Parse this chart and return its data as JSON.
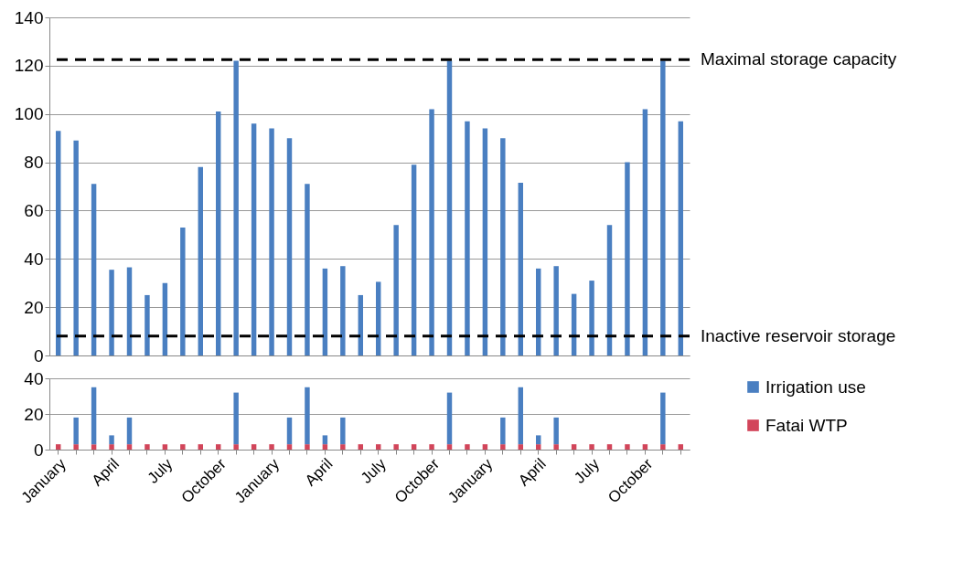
{
  "chart_data": [
    {
      "type": "bar",
      "categories": [
        null,
        null,
        null,
        null,
        null,
        null,
        null,
        null,
        null,
        null,
        null,
        null,
        null,
        null,
        null,
        null,
        null,
        null,
        null,
        null,
        null,
        null,
        null,
        null,
        null,
        null,
        null,
        null,
        null,
        null,
        null,
        null,
        null,
        null,
        null,
        null
      ],
      "values": [
        93,
        89,
        71,
        35.5,
        36.5,
        25,
        30,
        53,
        78,
        101,
        122,
        96,
        94,
        90,
        71,
        36,
        37,
        25,
        30.5,
        54,
        79,
        102,
        122,
        97,
        94,
        90,
        71.5,
        36,
        37,
        25.5,
        31,
        54,
        80,
        102,
        122,
        97
      ],
      "color": "#4a7fc1",
      "ylim": [
        0,
        140
      ],
      "yticks": [
        0,
        20,
        40,
        60,
        80,
        100,
        120,
        140
      ],
      "grid": "y",
      "tick_labels": "y",
      "ref_lines": [
        {
          "axis": "y",
          "value": 122.5,
          "label": "Maximal storage capacity",
          "color": "#000000",
          "line_style": "dashed"
        },
        {
          "axis": "y",
          "value": 8,
          "label": "Inactive reservoir storage",
          "color": "#000000",
          "line_style": "dashed"
        }
      ]
    },
    {
      "type": "bar",
      "stacked": true,
      "categories": [
        "January",
        null,
        null,
        "April",
        null,
        null,
        "July",
        null,
        null,
        "October",
        null,
        null,
        "January",
        null,
        null,
        "April",
        null,
        null,
        "July",
        null,
        null,
        "October",
        null,
        null,
        "January",
        null,
        null,
        "April",
        null,
        null,
        "July",
        null,
        null,
        "October",
        null,
        null
      ],
      "series": [
        {
          "name": "Fatai WTP",
          "color": "#d2455a",
          "values": [
            3,
            3,
            3,
            3,
            3,
            3,
            3,
            3,
            3,
            3,
            3,
            3,
            3,
            3,
            3,
            3,
            3,
            3,
            3,
            3,
            3,
            3,
            3,
            3,
            3,
            3,
            3,
            3,
            3,
            3,
            3,
            3,
            3,
            3,
            3,
            3
          ]
        },
        {
          "name": "Irrigation use",
          "color": "#4a7fc1",
          "values": [
            0,
            15,
            32,
            5,
            15,
            0,
            0,
            0,
            0,
            0,
            29,
            0,
            0,
            15,
            32,
            5,
            15,
            0,
            0,
            0,
            0,
            0,
            29,
            0,
            0,
            15,
            32,
            5,
            15,
            0,
            0,
            0,
            0,
            0,
            29,
            0
          ]
        }
      ],
      "ylim": [
        0,
        40
      ],
      "yticks": [
        0,
        20,
        40
      ],
      "grid": "y",
      "legend": "right"
    }
  ]
}
